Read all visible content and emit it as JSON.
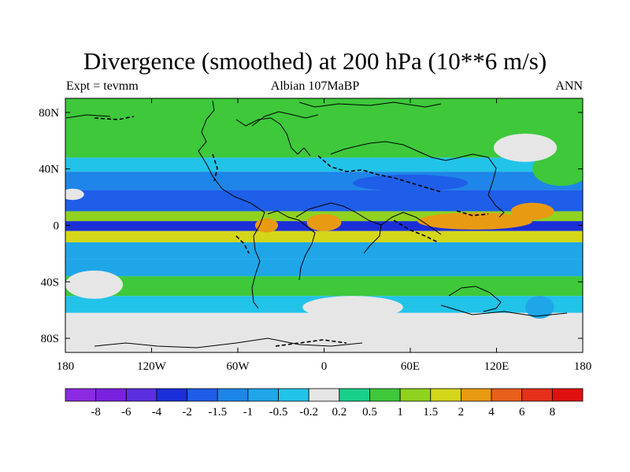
{
  "chart_data": {
    "type": "contour-map",
    "title": "Divergence (smoothed) at 200 hPa (10**6 m/s)",
    "subtitle_left": "Expt = tevmm",
    "subtitle_center": "Albian   107MaBP",
    "subtitle_right": "ANN",
    "x_ticks": [
      "180",
      "120W",
      "60W",
      "0",
      "60E",
      "120E",
      "180"
    ],
    "x_tick_values": [
      -180,
      -120,
      -60,
      0,
      60,
      120,
      180
    ],
    "y_ticks": [
      "80N",
      "40N",
      "0",
      "40S",
      "80S"
    ],
    "y_tick_values": [
      80,
      40,
      0,
      -40,
      -80
    ],
    "xlim": [
      -180,
      180
    ],
    "ylim": [
      -90,
      90
    ],
    "colorbar_labels": [
      "-8",
      "-6",
      "-4",
      "-2",
      "-1.5",
      "-1",
      "-0.5",
      "-0.2",
      "0.2",
      "0.5",
      "1",
      "1.5",
      "2",
      "4",
      "6",
      "8"
    ],
    "colorbar_colors": [
      "#8a2be2",
      "#7a22e0",
      "#5a2fe0",
      "#1b2fd8",
      "#1e5ee8",
      "#1d86e8",
      "#1fa6e8",
      "#22c3e8",
      "#e6e6e6",
      "#19d08a",
      "#3ec83a",
      "#8fd21f",
      "#d4d61a",
      "#e89a12",
      "#e8601a",
      "#e6301a",
      "#e01010"
    ],
    "bands": [
      {
        "lat": [
          68,
          90
        ],
        "level": 0.7
      },
      {
        "lat": [
          48,
          68
        ],
        "level": 0.5
      },
      {
        "lat": [
          38,
          48
        ],
        "level": -0.5
      },
      {
        "lat": [
          25,
          38
        ],
        "level": -1.2
      },
      {
        "lat": [
          10,
          25
        ],
        "level": -1.6
      },
      {
        "lat": [
          3,
          10
        ],
        "level": 1.2
      },
      {
        "lat": [
          -4,
          3
        ],
        "level": -2.5
      },
      {
        "lat": [
          -12,
          -4
        ],
        "level": 1.8
      },
      {
        "lat": [
          -24,
          -12
        ],
        "level": -1.0
      },
      {
        "lat": [
          -36,
          -24
        ],
        "level": -0.6
      },
      {
        "lat": [
          -50,
          -36
        ],
        "level": 0.7
      },
      {
        "lat": [
          -62,
          -50
        ],
        "level": -0.4
      },
      {
        "lat": [
          -90,
          -62
        ],
        "level": 0.1
      }
    ],
    "blobs": [
      {
        "lon": 105,
        "lat": 3,
        "rlon": 40,
        "rlat": 6,
        "level": 3.0
      },
      {
        "lon": 0,
        "lat": 2,
        "rlon": 12,
        "rlat": 6,
        "level": 2.5
      },
      {
        "lon": -40,
        "lat": 0,
        "rlon": 8,
        "rlat": 5,
        "level": 3.0
      },
      {
        "lon": 145,
        "lat": 10,
        "rlon": 15,
        "rlat": 6,
        "level": 3.5
      },
      {
        "lon": 165,
        "lat": 40,
        "rlon": 20,
        "rlat": 12,
        "level": 0.8
      },
      {
        "lon": -160,
        "lat": -42,
        "rlon": 20,
        "rlat": 10,
        "level": 0.1
      },
      {
        "lon": 140,
        "lat": 55,
        "rlon": 22,
        "rlat": 10,
        "level": 0.1
      },
      {
        "lon": 20,
        "lat": -58,
        "rlon": 35,
        "rlat": 8,
        "level": 0.1
      },
      {
        "lon": -175,
        "lat": 22,
        "rlon": 8,
        "rlat": 4,
        "level": 0.1
      },
      {
        "lon": 150,
        "lat": -58,
        "rlon": 10,
        "rlat": 8,
        "level": -1.0
      },
      {
        "lon": 60,
        "lat": 30,
        "rlon": 40,
        "rlat": 6,
        "level": -1.6
      }
    ]
  }
}
